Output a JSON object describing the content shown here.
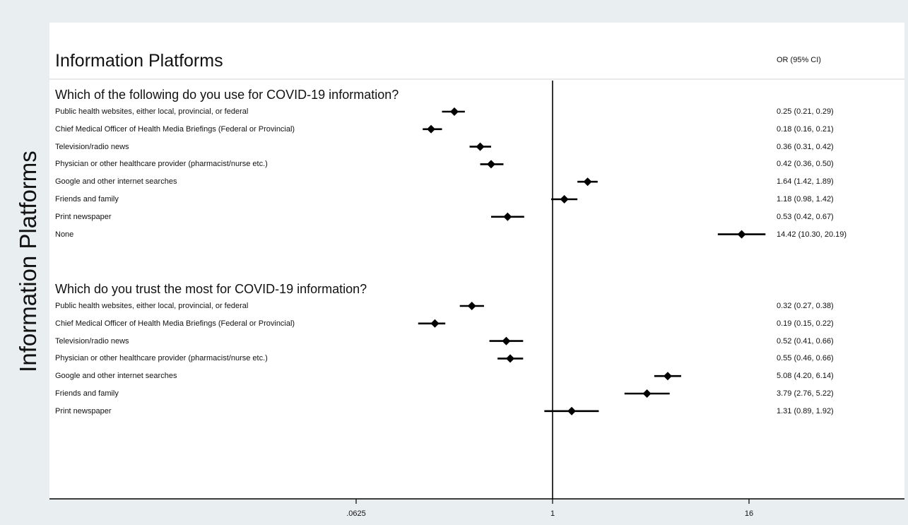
{
  "figure": {
    "title": "Information Platforms",
    "ylabel": "Information Platforms",
    "ci_header": "OR (95% CI)"
  },
  "chart_data": {
    "type": "forest",
    "x_scale": "log2",
    "xlim": [
      0.0039,
      256
    ],
    "reference_line": 1,
    "x_ticks": [
      {
        "value": 0.0625,
        "label": ".0625"
      },
      {
        "value": 1,
        "label": "1"
      },
      {
        "value": 16,
        "label": "16"
      }
    ],
    "sections": [
      {
        "heading": "Which of the following do you use for COVID-19 information?",
        "rows": [
          {
            "label": "Public health websites, either local, provincial, or federal",
            "or": 0.25,
            "lo": 0.21,
            "hi": 0.29,
            "ci_text": "0.25 (0.21, 0.29)"
          },
          {
            "label": "Chief Medical Officer of Health Media Briefings (Federal or Provincial)",
            "or": 0.18,
            "lo": 0.16,
            "hi": 0.21,
            "ci_text": "0.18 (0.16, 0.21)"
          },
          {
            "label": "Television/radio news",
            "or": 0.36,
            "lo": 0.31,
            "hi": 0.42,
            "ci_text": "0.36 (0.31, 0.42)"
          },
          {
            "label": "Physician or other healthcare provider (pharmacist/nurse etc.)",
            "or": 0.42,
            "lo": 0.36,
            "hi": 0.5,
            "ci_text": "0.42 (0.36, 0.50)"
          },
          {
            "label": "Google and other internet searches",
            "or": 1.64,
            "lo": 1.42,
            "hi": 1.89,
            "ci_text": "1.64 (1.42, 1.89)"
          },
          {
            "label": "Friends and family",
            "or": 1.18,
            "lo": 0.98,
            "hi": 1.42,
            "ci_text": "1.18 (0.98, 1.42)"
          },
          {
            "label": "Print newspaper",
            "or": 0.53,
            "lo": 0.42,
            "hi": 0.67,
            "ci_text": "0.53 (0.42, 0.67)"
          },
          {
            "label": "None",
            "or": 14.42,
            "lo": 10.3,
            "hi": 20.19,
            "ci_text": "14.42 (10.30, 20.19)"
          }
        ]
      },
      {
        "heading": "Which do you trust the most for COVID-19 information?",
        "rows": [
          {
            "label": "Public health websites, either local, provincial, or federal",
            "or": 0.32,
            "lo": 0.27,
            "hi": 0.38,
            "ci_text": "0.32 (0.27, 0.38)"
          },
          {
            "label": "Chief Medical Officer of Health Media Briefings (Federal or Provincial)",
            "or": 0.19,
            "lo": 0.15,
            "hi": 0.22,
            "ci_text": "0.19 (0.15, 0.22)"
          },
          {
            "label": "Television/radio news",
            "or": 0.52,
            "lo": 0.41,
            "hi": 0.66,
            "ci_text": "0.52 (0.41, 0.66)"
          },
          {
            "label": "Physician or other healthcare provider (pharmacist/nurse etc.)",
            "or": 0.55,
            "lo": 0.46,
            "hi": 0.66,
            "ci_text": "0.55 (0.46, 0.66)"
          },
          {
            "label": "Google and other internet searches",
            "or": 5.08,
            "lo": 4.2,
            "hi": 6.14,
            "ci_text": "5.08 (4.20, 6.14)"
          },
          {
            "label": "Friends and family",
            "or": 3.79,
            "lo": 2.76,
            "hi": 5.22,
            "ci_text": "3.79 (2.76, 5.22)"
          },
          {
            "label": "Print newspaper",
            "or": 1.31,
            "lo": 0.89,
            "hi": 1.92,
            "ci_text": "1.31 (0.89, 1.92)"
          }
        ]
      }
    ]
  }
}
